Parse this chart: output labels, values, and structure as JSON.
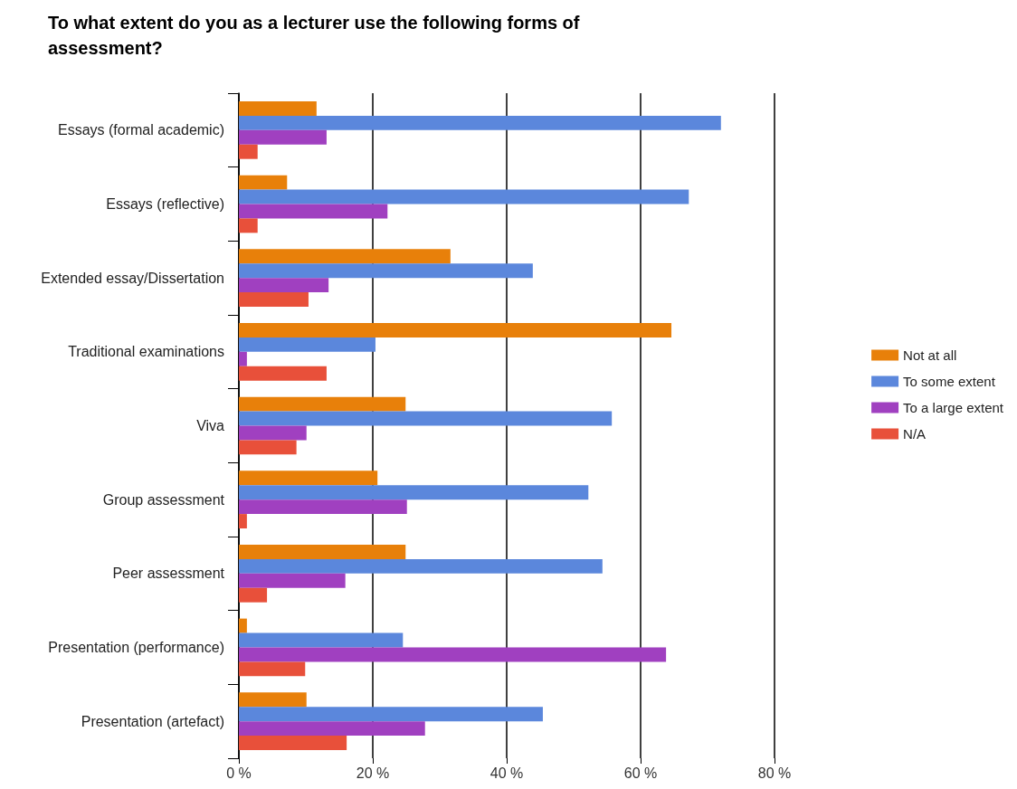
{
  "chart_data": {
    "type": "bar",
    "orientation": "horizontal",
    "title": "To what extent do you as a lecturer use the following forms of assessment?",
    "categories": [
      "Essays (formal academic)",
      "Essays (reflective)",
      "Extended essay/Dissertation",
      "Traditional examinations",
      "Viva",
      "Group assessment",
      "Peer assessment",
      "Presentation (performance)",
      "Presentation (artefact)"
    ],
    "series": [
      {
        "name": "Not at all",
        "color": "#e8800a",
        "values": [
          11.6,
          7.2,
          31.6,
          64.6,
          24.9,
          20.7,
          24.9,
          1.2,
          10.1
        ]
      },
      {
        "name": "To some extent",
        "color": "#5b87dc",
        "values": [
          72.0,
          67.2,
          43.9,
          20.4,
          55.7,
          52.2,
          54.3,
          24.5,
          45.4
        ]
      },
      {
        "name": "To a large extent",
        "color": "#a040c0",
        "values": [
          13.1,
          22.2,
          13.4,
          1.2,
          10.1,
          25.1,
          15.9,
          63.8,
          27.8
        ]
      },
      {
        "name": "N/A",
        "color": "#e8503a",
        "values": [
          2.8,
          2.8,
          10.4,
          13.1,
          8.6,
          1.2,
          4.2,
          9.9,
          16.1
        ]
      }
    ],
    "xlim": [
      0,
      80
    ],
    "xticks": [
      {
        "value": 0,
        "label": "0 %"
      },
      {
        "value": 20,
        "label": "20 %"
      },
      {
        "value": 40,
        "label": "40 %"
      },
      {
        "value": 60,
        "label": "60 %"
      },
      {
        "value": 80,
        "label": "80 %"
      }
    ],
    "grid": "x",
    "legend": "right"
  }
}
